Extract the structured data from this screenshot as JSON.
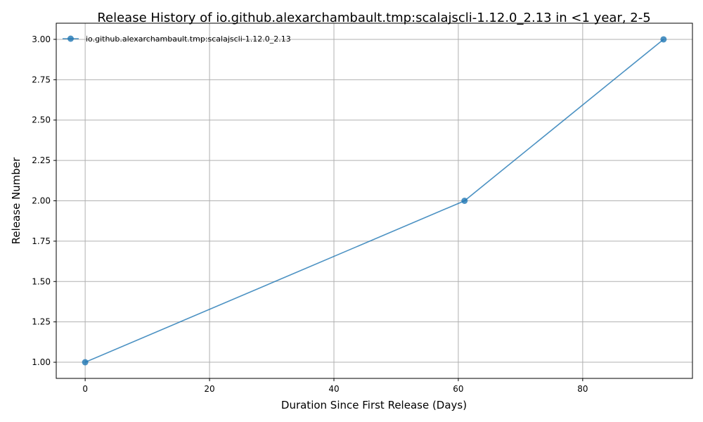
{
  "chart_data": {
    "type": "line",
    "title": "Release History of io.github.alexarchambault.tmp:scalajscli-1.12.0_2.13 in <1 year, 2-5",
    "xlabel": "Duration Since First Release (Days)",
    "ylabel": "Release Number",
    "xlim": [
      -4.65,
      97.65
    ],
    "ylim": [
      0.9,
      3.1
    ],
    "x_ticks": [
      0,
      20,
      40,
      60,
      80
    ],
    "y_ticks": [
      1.0,
      1.25,
      1.5,
      1.75,
      2.0,
      2.25,
      2.5,
      2.75,
      3.0
    ],
    "x_tick_labels": [
      "0",
      "20",
      "40",
      "60",
      "80"
    ],
    "y_tick_labels": [
      "1.00",
      "1.25",
      "1.50",
      "1.75",
      "2.00",
      "2.25",
      "2.50",
      "2.75",
      "3.00"
    ],
    "grid": true,
    "legend_position": "top-left",
    "series": [
      {
        "name": "io.github.alexarchambault.tmp:scalajscli-1.12.0_2.13",
        "color": "#1f77b4",
        "x": [
          0,
          61,
          93
        ],
        "y": [
          1,
          2,
          3
        ]
      }
    ]
  }
}
